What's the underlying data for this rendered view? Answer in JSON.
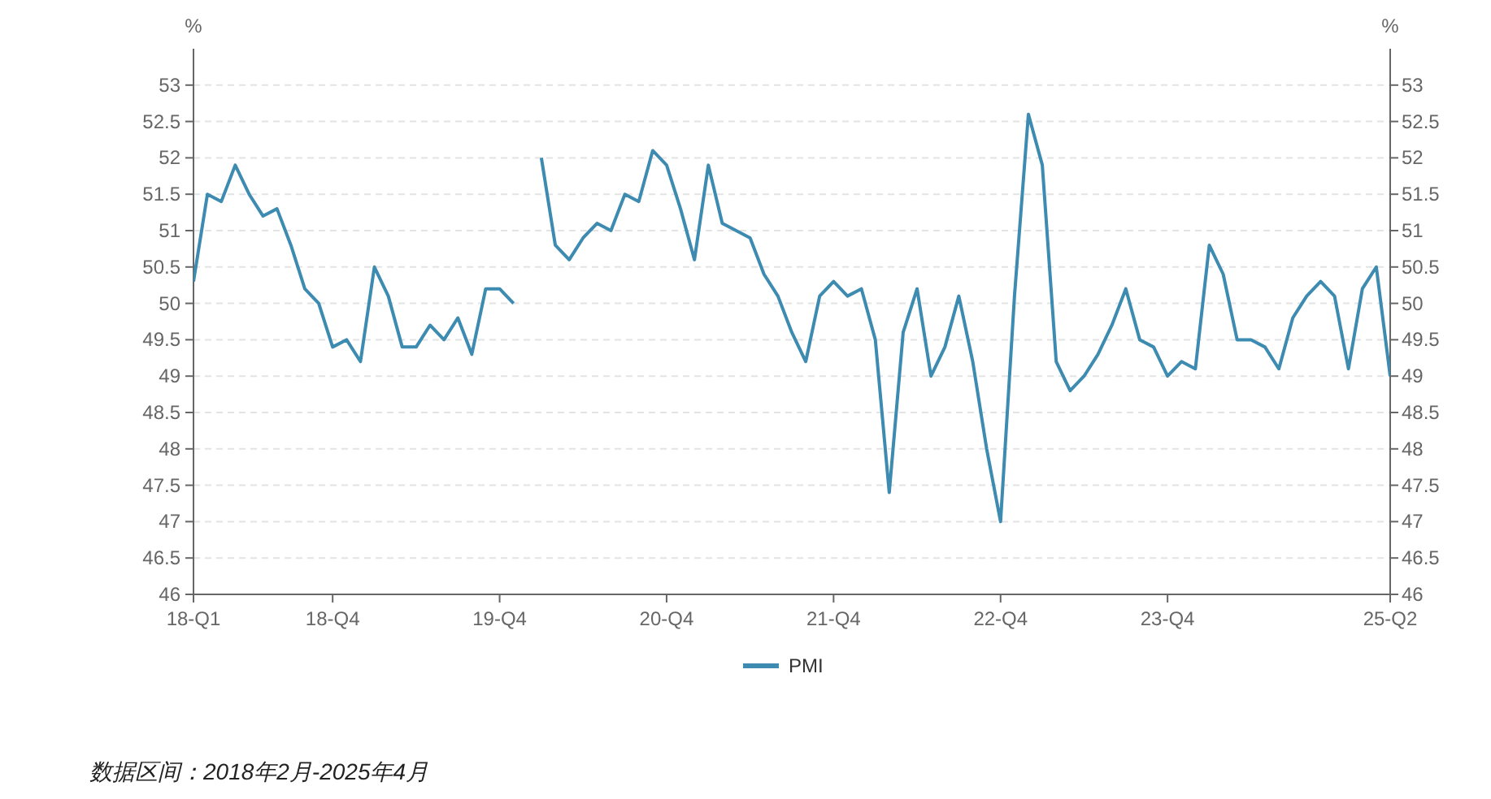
{
  "chart_data": {
    "type": "line",
    "categories": [
      "18-Q1",
      null,
      null,
      null,
      null,
      null,
      null,
      null,
      null,
      null,
      "18-Q4",
      null,
      null,
      null,
      null,
      null,
      null,
      null,
      null,
      null,
      null,
      null,
      "19-Q4",
      null,
      null,
      null,
      null,
      null,
      null,
      null,
      null,
      null,
      null,
      null,
      "20-Q4",
      null,
      null,
      null,
      null,
      null,
      null,
      null,
      null,
      null,
      null,
      null,
      "21-Q4",
      null,
      null,
      null,
      null,
      null,
      null,
      null,
      null,
      null,
      null,
      null,
      "22-Q4",
      null,
      null,
      null,
      null,
      null,
      null,
      null,
      null,
      null,
      null,
      null,
      "23-Q4",
      null,
      null,
      null,
      null,
      null,
      null,
      null,
      null,
      null,
      null,
      null,
      null,
      null,
      null,
      null,
      "25-Q2"
    ],
    "series": [
      {
        "name": "PMI",
        "color": "#3d8bb1",
        "values": [
          50.3,
          51.5,
          51.4,
          51.9,
          51.5,
          51.2,
          51.3,
          50.8,
          50.2,
          50.0,
          49.4,
          49.5,
          49.2,
          50.5,
          50.1,
          49.4,
          49.4,
          49.7,
          49.5,
          49.8,
          49.3,
          50.2,
          50.2,
          50.0,
          null,
          52.0,
          50.8,
          50.6,
          50.9,
          51.1,
          51.0,
          51.5,
          51.4,
          52.1,
          51.9,
          51.3,
          50.6,
          51.9,
          51.1,
          51.0,
          50.9,
          50.4,
          50.1,
          49.6,
          49.2,
          50.1,
          50.3,
          50.1,
          50.2,
          49.5,
          47.4,
          49.6,
          50.2,
          49.0,
          49.4,
          50.1,
          49.2,
          48.0,
          47.0,
          50.1,
          52.6,
          51.9,
          49.2,
          48.8,
          49.0,
          49.3,
          49.7,
          50.2,
          49.5,
          49.4,
          49.0,
          49.2,
          49.1,
          50.8,
          50.4,
          49.5,
          49.5,
          49.4,
          49.1,
          49.8,
          50.1,
          50.3,
          50.1,
          49.1,
          50.2,
          50.5,
          49.0
        ]
      }
    ],
    "ylabel": "%",
    "y2label": "%",
    "ylim": [
      46,
      53.5
    ],
    "yticks": [
      46,
      46.5,
      47,
      47.5,
      48,
      48.5,
      49,
      49.5,
      50,
      50.5,
      51,
      51.5,
      52,
      52.5,
      53
    ],
    "y2lim": [
      46,
      53.5
    ],
    "y2ticks": [
      46,
      46.5,
      47,
      47.5,
      48,
      48.5,
      49,
      49.5,
      50,
      50.5,
      51,
      51.5,
      52,
      52.5,
      53
    ],
    "grid": "y",
    "legend": "bottom",
    "annotations": [
      "数据区间：2018年2月-2025年4月"
    ]
  }
}
